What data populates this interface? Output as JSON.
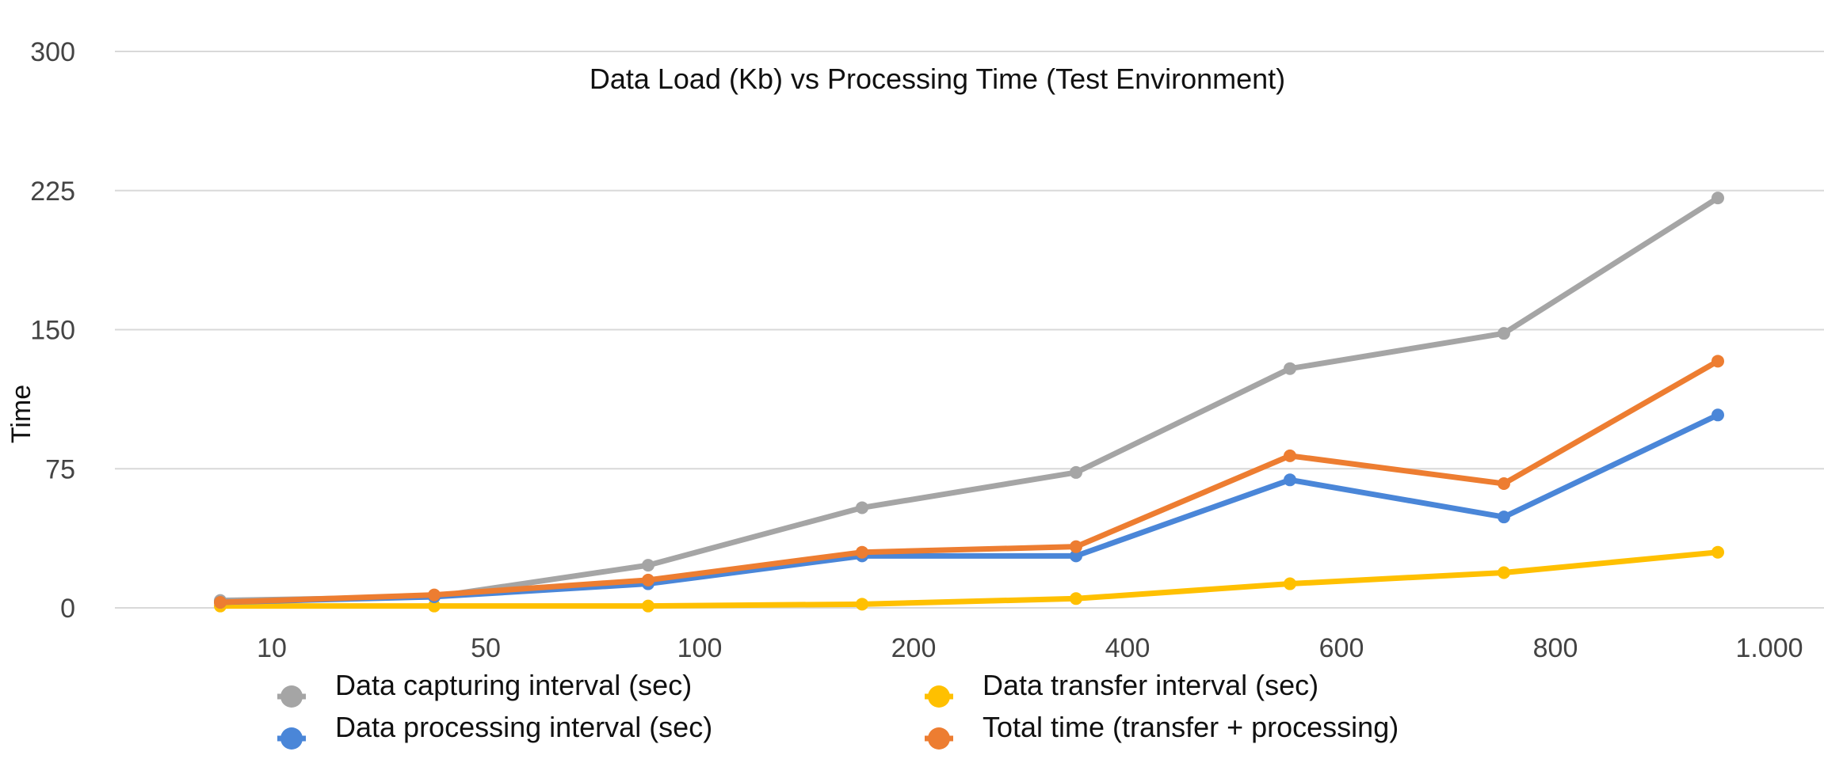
{
  "chart_data": {
    "type": "line",
    "title": "Data Load (Kb) vs Processing Time (Test Environment)",
    "xlabel": "",
    "ylabel": "Time",
    "ylim": [
      0,
      300
    ],
    "yticks": [
      "0",
      "75",
      "150",
      "225",
      "300"
    ],
    "categories": [
      "10",
      "50",
      "100",
      "200",
      "400",
      "600",
      "800",
      "1.000"
    ],
    "grid": true,
    "legend_position": "bottom",
    "series": [
      {
        "name": "Data capturing interval (sec)",
        "color": "#a5a5a5",
        "values": [
          4,
          6,
          23,
          54,
          73,
          129,
          148,
          221
        ]
      },
      {
        "name": "Data transfer interval (sec)",
        "color": "#ffc000",
        "values": [
          1,
          1,
          1,
          2,
          5,
          13,
          19,
          30
        ]
      },
      {
        "name": "Data processing interval (sec)",
        "color": "#4a86d8",
        "values": [
          3,
          6,
          13,
          28,
          28,
          69,
          49,
          104
        ]
      },
      {
        "name": "Total time (transfer + processing)",
        "color": "#ed7d31",
        "values": [
          3,
          7,
          15,
          30,
          33,
          82,
          67,
          133
        ]
      }
    ]
  }
}
